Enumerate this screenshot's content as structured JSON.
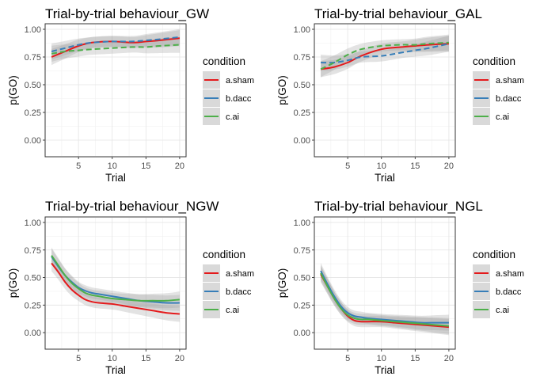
{
  "chart_data": [
    {
      "type": "line",
      "title": "Trial-by-trial behaviour_GW",
      "xlabel": "Trial",
      "ylabel": "p(GO)",
      "xlim": [
        0.05,
        20.95
      ],
      "ylim": [
        -0.15,
        1.05
      ],
      "xticks": [
        5,
        10,
        15,
        20
      ],
      "yticks": [
        0.0,
        0.25,
        0.5,
        0.75,
        1.0
      ],
      "ytick_labels": [
        "0.00",
        "0.25",
        "0.50",
        "0.75",
        "1.00"
      ],
      "grid": true,
      "legend": {
        "title": "condition",
        "position": "right"
      },
      "x": [
        1,
        3,
        5,
        7,
        10,
        13,
        15,
        17,
        20
      ],
      "series": [
        {
          "name": "a.sham",
          "color": "#e41a1c",
          "dash": false,
          "values": [
            0.75,
            0.8,
            0.85,
            0.88,
            0.89,
            0.88,
            0.89,
            0.9,
            0.92
          ]
        },
        {
          "name": "b.dacc",
          "color": "#377eb8",
          "dash": true,
          "values": [
            0.8,
            0.83,
            0.86,
            0.88,
            0.89,
            0.89,
            0.9,
            0.91,
            0.93
          ]
        },
        {
          "name": "c.ai",
          "color": "#4daf4a",
          "dash": true,
          "values": [
            0.78,
            0.8,
            0.81,
            0.82,
            0.83,
            0.84,
            0.84,
            0.85,
            0.86
          ]
        }
      ]
    },
    {
      "type": "line",
      "title": "Trial-by-trial behaviour_GAL",
      "xlabel": "Trial",
      "ylabel": "p(GO)",
      "xlim": [
        0.05,
        20.95
      ],
      "ylim": [
        -0.15,
        1.05
      ],
      "xticks": [
        5,
        10,
        15,
        20
      ],
      "yticks": [
        0.0,
        0.25,
        0.5,
        0.75,
        1.0
      ],
      "ytick_labels": [
        "0.00",
        "0.25",
        "0.50",
        "0.75",
        "1.00"
      ],
      "grid": true,
      "legend": {
        "title": "condition",
        "position": "right"
      },
      "x": [
        1,
        3,
        5,
        7,
        10,
        13,
        15,
        17,
        20
      ],
      "series": [
        {
          "name": "a.sham",
          "color": "#e41a1c",
          "dash": false,
          "values": [
            0.64,
            0.66,
            0.7,
            0.76,
            0.82,
            0.84,
            0.85,
            0.86,
            0.87
          ]
        },
        {
          "name": "b.dacc",
          "color": "#377eb8",
          "dash": true,
          "values": [
            0.7,
            0.7,
            0.72,
            0.75,
            0.76,
            0.79,
            0.81,
            0.83,
            0.87
          ]
        },
        {
          "name": "c.ai",
          "color": "#4daf4a",
          "dash": true,
          "values": [
            0.64,
            0.7,
            0.77,
            0.82,
            0.85,
            0.86,
            0.86,
            0.87,
            0.88
          ]
        }
      ]
    },
    {
      "type": "line",
      "title": "Trial-by-trial behaviour_NGW",
      "xlabel": "Trial",
      "ylabel": "p(GO)",
      "xlim": [
        0.05,
        20.95
      ],
      "ylim": [
        -0.15,
        1.05
      ],
      "xticks": [
        5,
        10,
        15,
        20
      ],
      "yticks": [
        0.0,
        0.25,
        0.5,
        0.75,
        1.0
      ],
      "ytick_labels": [
        "0.00",
        "0.25",
        "0.50",
        "0.75",
        "1.00"
      ],
      "grid": true,
      "legend": {
        "title": "condition",
        "position": "right"
      },
      "x": [
        1,
        2,
        3,
        4,
        5,
        6,
        7,
        8,
        10,
        12,
        14,
        16,
        18,
        20
      ],
      "series": [
        {
          "name": "a.sham",
          "color": "#e41a1c",
          "dash": false,
          "values": [
            0.63,
            0.55,
            0.46,
            0.39,
            0.34,
            0.3,
            0.28,
            0.27,
            0.26,
            0.24,
            0.22,
            0.2,
            0.18,
            0.17
          ]
        },
        {
          "name": "b.dacc",
          "color": "#377eb8",
          "dash": false,
          "values": [
            0.69,
            0.6,
            0.52,
            0.46,
            0.41,
            0.38,
            0.36,
            0.35,
            0.33,
            0.31,
            0.29,
            0.28,
            0.27,
            0.27
          ]
        },
        {
          "name": "c.ai",
          "color": "#4daf4a",
          "dash": false,
          "values": [
            0.7,
            0.61,
            0.52,
            0.45,
            0.4,
            0.36,
            0.34,
            0.33,
            0.31,
            0.3,
            0.29,
            0.29,
            0.29,
            0.3
          ]
        }
      ]
    },
    {
      "type": "line",
      "title": "Trial-by-trial behaviour_NGL",
      "xlabel": "Trial",
      "ylabel": "p(GO)",
      "xlim": [
        0.05,
        20.95
      ],
      "ylim": [
        -0.15,
        1.05
      ],
      "xticks": [
        5,
        10,
        15,
        20
      ],
      "yticks": [
        0.0,
        0.25,
        0.5,
        0.75,
        1.0
      ],
      "ytick_labels": [
        "0.00",
        "0.25",
        "0.50",
        "0.75",
        "1.00"
      ],
      "grid": true,
      "legend": {
        "title": "condition",
        "position": "right"
      },
      "x": [
        1,
        2,
        3,
        4,
        5,
        6,
        7,
        8,
        10,
        12,
        14,
        16,
        18,
        20
      ],
      "series": [
        {
          "name": "a.sham",
          "color": "#e41a1c",
          "dash": false,
          "values": [
            0.53,
            0.42,
            0.31,
            0.22,
            0.15,
            0.11,
            0.1,
            0.1,
            0.1,
            0.09,
            0.08,
            0.07,
            0.06,
            0.05
          ]
        },
        {
          "name": "b.dacc",
          "color": "#377eb8",
          "dash": false,
          "values": [
            0.56,
            0.44,
            0.33,
            0.24,
            0.18,
            0.15,
            0.14,
            0.13,
            0.12,
            0.11,
            0.1,
            0.09,
            0.09,
            0.09
          ]
        },
        {
          "name": "c.ai",
          "color": "#4daf4a",
          "dash": false,
          "values": [
            0.54,
            0.42,
            0.31,
            0.22,
            0.16,
            0.13,
            0.12,
            0.12,
            0.11,
            0.1,
            0.09,
            0.08,
            0.07,
            0.06
          ]
        }
      ]
    }
  ]
}
